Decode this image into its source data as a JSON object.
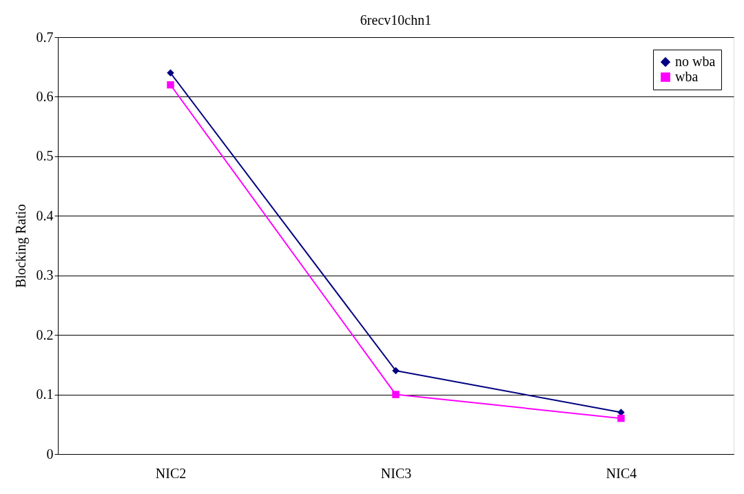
{
  "chart_data": {
    "type": "line",
    "title": "6recv10chn1",
    "ylabel": "Blocking Ratio",
    "categories": [
      "NIC2",
      "NIC3",
      "NIC4"
    ],
    "series": [
      {
        "name": "no wba",
        "color": "#000080",
        "marker": "diamond",
        "values": [
          0.64,
          0.14,
          0.07
        ]
      },
      {
        "name": "wba",
        "color": "#ff00ff",
        "marker": "square",
        "values": [
          0.62,
          0.1,
          0.06
        ]
      }
    ],
    "ylim": [
      0,
      0.7
    ],
    "yticks": [
      0,
      0.1,
      0.2,
      0.3,
      0.4,
      0.5,
      0.6,
      0.7
    ],
    "grid": "y",
    "legend": "top right",
    "line_style": "solid"
  }
}
